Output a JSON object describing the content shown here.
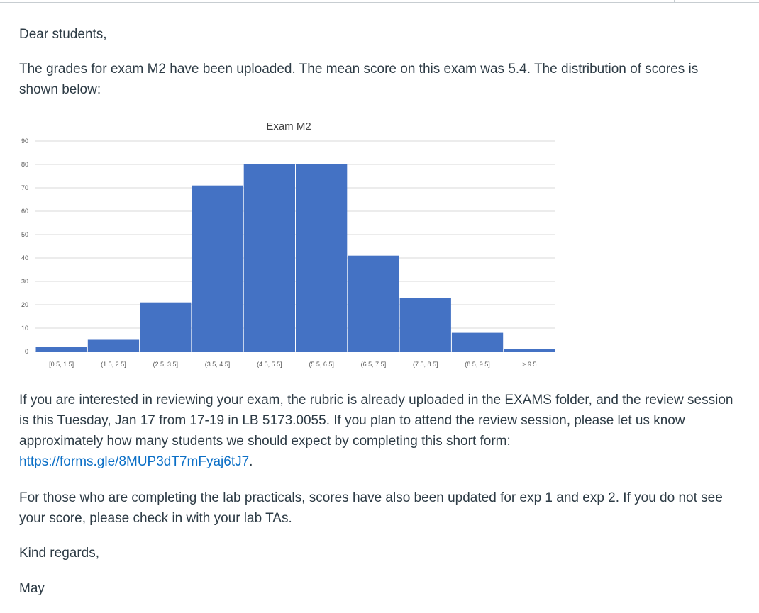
{
  "message": {
    "greeting": "Dear students,",
    "intro": "The grades for exam M2 have been uploaded. The mean score on this exam was 5.4. The distribution of scores is shown below:",
    "review_text": "If you are interested in reviewing your exam, the rubric is already uploaded in the EXAMS folder, and the review session is this Tuesday, Jan 17 from 17-19 in LB 5173.0055. If you plan to attend the review session, please let us know approximately how many students we should expect by completing this short form: ",
    "form_link": "https://forms.gle/8MUP3dT7mFyaj6tJ7",
    "review_end": ".",
    "lab_text": "For those who are completing the lab practicals, scores have also been updated for exp 1 and exp 2. If you do not see your score, please check in with your lab TAs.",
    "closing": "Kind regards,",
    "signature": "May"
  },
  "chart_data": {
    "type": "bar",
    "title": "Exam M2",
    "categories": [
      "[0.5, 1.5]",
      "(1.5, 2.5]",
      "(2.5, 3.5]",
      "(3.5, 4.5]",
      "(4.5, 5.5]",
      "(5.5, 6.5]",
      "(6.5, 7.5]",
      "(7.5, 8.5]",
      "(8.5, 9.5]",
      "> 9.5"
    ],
    "values": [
      2,
      5,
      21,
      71,
      80,
      80,
      41,
      23,
      8,
      1
    ],
    "xlabel": "",
    "ylabel": "",
    "ylim": [
      0,
      90
    ],
    "yticks": [
      0,
      10,
      20,
      30,
      40,
      50,
      60,
      70,
      80,
      90
    ],
    "grid": true,
    "legend": "none",
    "bar_color": "#4472c4",
    "grid_color": "#d9d9d9"
  }
}
